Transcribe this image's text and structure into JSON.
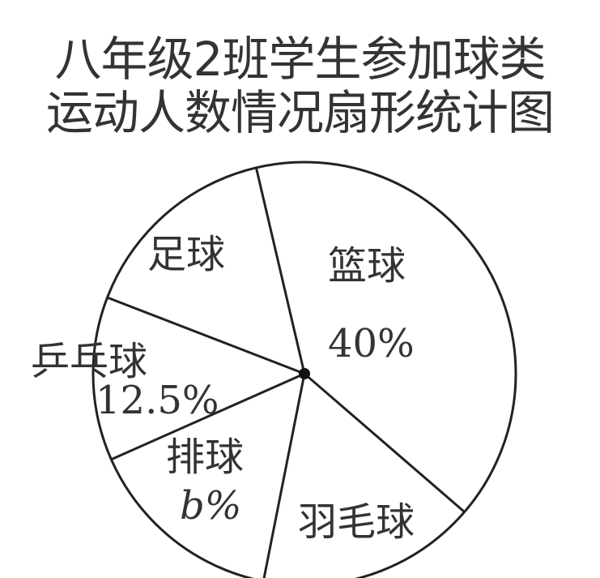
{
  "chart_data": {
    "type": "pie",
    "title_lines": [
      "八年级2班学生参加球类",
      "运动人数情况扇形统计图"
    ],
    "slices": [
      {
        "label": "篮球",
        "value_text": "40%",
        "value": 40
      },
      {
        "label": "羽毛球",
        "value_text": "",
        "value": null
      },
      {
        "label": "排球",
        "value_text": "b%",
        "value": null
      },
      {
        "label": "乒乓球",
        "value_text": "12.5%",
        "value": 12.5
      },
      {
        "label": "足球",
        "value_text": "",
        "value": null
      }
    ]
  }
}
